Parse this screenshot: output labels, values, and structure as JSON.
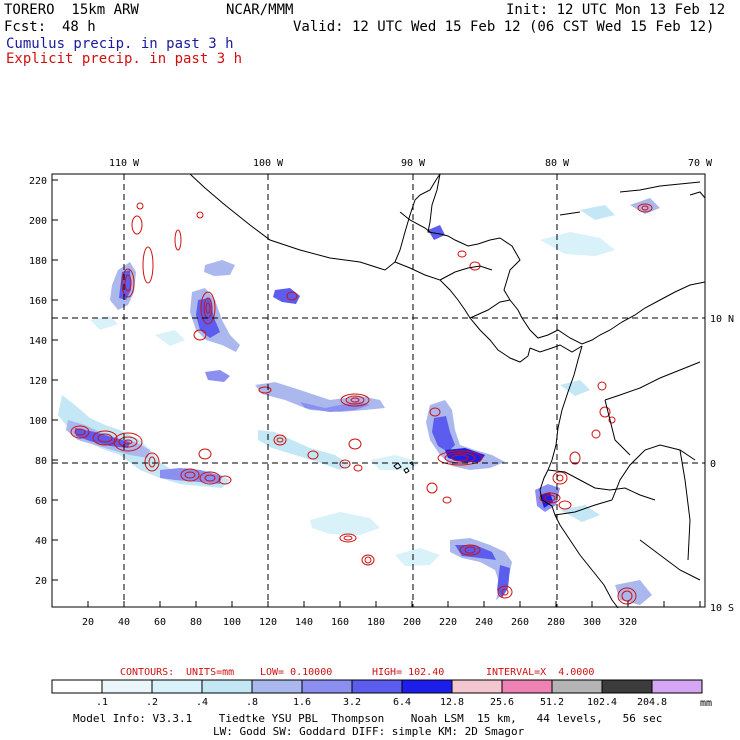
{
  "header": {
    "model": "TORERO  15km ARW",
    "org": "NCAR/MMM",
    "init": "Init: 12 UTC Mon 13 Feb 12",
    "fcst_label": "Fcst:",
    "fcst_hours": "48 h",
    "valid": "Valid: 12 UTC Wed 15 Feb 12 (06 CST Wed 15 Feb 12)",
    "legend_cumulus": "Cumulus precip. in past 3 h",
    "legend_explicit": "Explicit precip. in past 3 h"
  },
  "map": {
    "lon_labels": [
      "110 W",
      "100 W",
      "90 W",
      "80 W",
      "70 W"
    ],
    "lat_labels": [
      "10 N",
      "0",
      "10 S"
    ],
    "left_ticks": [
      "220",
      "200",
      "180",
      "160",
      "140",
      "120",
      "100",
      "80",
      "60",
      "40",
      "20"
    ],
    "bottom_ticks": [
      "20",
      "40",
      "60",
      "80",
      "100",
      "120",
      "140",
      "160",
      "180",
      "200",
      "220",
      "240",
      "260",
      "280",
      "300",
      "320"
    ]
  },
  "contour_info": {
    "label": "CONTOURS:",
    "units": "UNITS=mm",
    "low": "LOW= 0.10000",
    "high": "HIGH= 102.40",
    "interval": "INTERVAL=X  4.0000"
  },
  "colorbar": {
    "labels": [
      ".1",
      ".2",
      ".4",
      ".8",
      "1.6",
      "3.2",
      "6.4",
      "12.8",
      "25.6",
      "51.2",
      "102.4",
      "204.8"
    ],
    "unit": "mm",
    "colors": [
      "#ffffff",
      "#ebf6fb",
      "#d9f1f8",
      "#c4e7f5",
      "#aab8ee",
      "#8a8ff0",
      "#5c5cee",
      "#1e1eea",
      "#f4c6cf",
      "#ee82b4",
      "#b4b4b4",
      "#3c3c3c",
      "#d4a6f4"
    ]
  },
  "footer": {
    "line1": "Model Info: V3.3.1    Tiedtke YSU PBL  Thompson    Noah LSM  15 km,   44 levels,   56 sec",
    "line2": "LW: Godd SW: Goddard DIFF: simple KM: 2D Smagor"
  }
}
